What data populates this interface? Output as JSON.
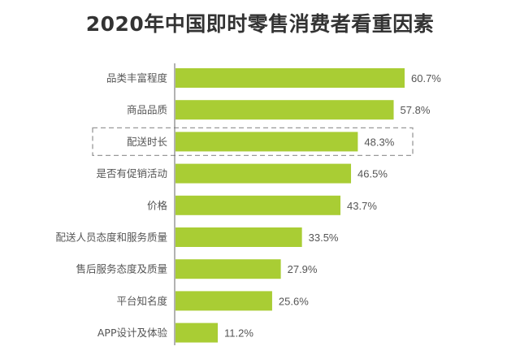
{
  "chart_data": {
    "type": "bar",
    "orientation": "horizontal",
    "title": "2020年中国即时零售消费者看重因素",
    "categories": [
      "品类丰富程度",
      "商品品质",
      "配送时长",
      "是否有促销活动",
      "价格",
      "配送人员态度和服务质量",
      "售后服务态度及质量",
      "平台知名度",
      "APP设计及体验"
    ],
    "values": [
      60.7,
      57.8,
      48.3,
      46.5,
      43.7,
      33.5,
      27.9,
      25.6,
      11.2
    ],
    "value_labels": [
      "60.7%",
      "57.8%",
      "48.3%",
      "46.5%",
      "43.7%",
      "33.5%",
      "27.9%",
      "25.6%",
      "11.2%"
    ],
    "highlighted_category": "配送时长",
    "xlabel": "",
    "ylabel": "",
    "xlim": [
      0,
      65
    ],
    "grid": false,
    "bar_color": "#a9cd34"
  }
}
